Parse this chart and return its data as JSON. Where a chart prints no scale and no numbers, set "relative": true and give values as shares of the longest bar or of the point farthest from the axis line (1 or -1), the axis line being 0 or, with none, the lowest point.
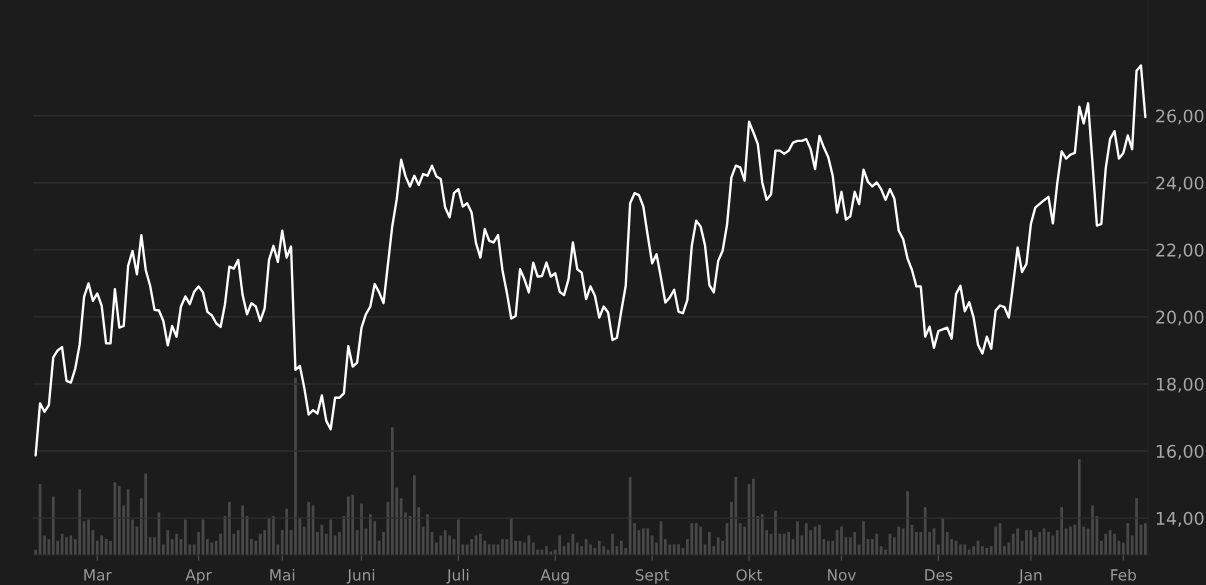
{
  "chart_data": [
    {
      "type": "line",
      "grid": "y",
      "tick_labels": "y",
      "categories": [
        null,
        null,
        null,
        null,
        null,
        null,
        null,
        null,
        null,
        null,
        null,
        null,
        null,
        null,
        null,
        null,
        null,
        null,
        null,
        null,
        null,
        null,
        null,
        null,
        null,
        null,
        null,
        null,
        null,
        null,
        null,
        null,
        null,
        null,
        null,
        null,
        null,
        null,
        null,
        null,
        null,
        null,
        null,
        null,
        null,
        null,
        null,
        null,
        null,
        null,
        null,
        null,
        null,
        null,
        null,
        null,
        null,
        null,
        null,
        null,
        null,
        null,
        null,
        null,
        null,
        null,
        null,
        null,
        null,
        null,
        null,
        null,
        null,
        null,
        null,
        null,
        null,
        null,
        null,
        null,
        null,
        null,
        null,
        null,
        null,
        null,
        null,
        null,
        null,
        null,
        null,
        null,
        null,
        null,
        null,
        null,
        null,
        null,
        null,
        null,
        null,
        null,
        null,
        null,
        null,
        null,
        null,
        null,
        null,
        null,
        null,
        null,
        null,
        null,
        null,
        null,
        null,
        null,
        null,
        null,
        null,
        null,
        null,
        null,
        null,
        null,
        null,
        null,
        null,
        null,
        null,
        null,
        null,
        null,
        null,
        null,
        null,
        null,
        null,
        null,
        null,
        null,
        null,
        null,
        null,
        null,
        null,
        null,
        null,
        null,
        null,
        null,
        null,
        null,
        null,
        null,
        null,
        null,
        null,
        null,
        null,
        null,
        null,
        null,
        null,
        null,
        null,
        null,
        null,
        null,
        null,
        null,
        null,
        null,
        null,
        null,
        null,
        null,
        null,
        null,
        null,
        null,
        null,
        null,
        null,
        null,
        null,
        null,
        null,
        null,
        null,
        null,
        null,
        null,
        null,
        null,
        null,
        null,
        null,
        null,
        null,
        null,
        null,
        null,
        null,
        null,
        null,
        null,
        null,
        null,
        null,
        null,
        null,
        null,
        null,
        null,
        null,
        null,
        null,
        null,
        null,
        null,
        null,
        null,
        null,
        null,
        null,
        null,
        null,
        null,
        null,
        null,
        null,
        null,
        null,
        null,
        null,
        null,
        null,
        null,
        null,
        null,
        null,
        null,
        null,
        null,
        null,
        null,
        null,
        null,
        null,
        null,
        null
      ],
      "ylim": [
        12.9,
        29.45
      ],
      "yticks": [
        {
          "value": 14,
          "label": "14,00"
        },
        {
          "value": 16,
          "label": "16,00"
        },
        {
          "value": 18,
          "label": "18,00"
        },
        {
          "value": 20,
          "label": "20,00"
        },
        {
          "value": 22,
          "label": "22,00"
        },
        {
          "value": 24,
          "label": "24,00"
        },
        {
          "value": 26,
          "label": "26,00"
        }
      ],
      "series": [
        {
          "color": "#ffffff",
          "values": [
            15.87,
            17.42,
            17.17,
            17.37,
            18.79,
            19.0,
            19.1,
            18.09,
            18.04,
            18.46,
            19.18,
            20.6,
            21.0,
            20.48,
            20.7,
            20.33,
            19.21,
            19.21,
            20.83,
            19.68,
            19.73,
            21.52,
            21.97,
            21.27,
            22.44,
            21.4,
            20.93,
            20.21,
            20.19,
            19.88,
            19.15,
            19.73,
            19.41,
            20.31,
            20.61,
            20.38,
            20.75,
            20.91,
            20.73,
            20.15,
            20.05,
            19.81,
            19.7,
            20.38,
            21.5,
            21.44,
            21.7,
            20.65,
            20.08,
            20.41,
            20.31,
            19.88,
            20.25,
            21.7,
            22.12,
            21.64,
            22.57,
            21.77,
            22.1,
            18.42,
            18.54,
            17.89,
            17.09,
            17.22,
            17.12,
            17.66,
            16.9,
            16.65,
            17.59,
            17.59,
            17.72,
            19.13,
            18.52,
            18.64,
            19.68,
            20.08,
            20.31,
            20.98,
            20.73,
            20.41,
            21.57,
            22.72,
            23.51,
            24.69,
            24.19,
            23.89,
            24.21,
            23.93,
            24.26,
            24.21,
            24.51,
            24.19,
            24.11,
            23.26,
            22.97,
            23.69,
            23.81,
            23.29,
            23.39,
            23.11,
            22.2,
            21.77,
            22.62,
            22.27,
            22.22,
            22.44,
            21.4,
            20.73,
            19.95,
            20.03,
            21.42,
            21.12,
            20.73,
            21.62,
            21.2,
            21.22,
            21.62,
            21.2,
            21.3,
            20.75,
            20.65,
            21.12,
            22.22,
            21.42,
            21.32,
            20.53,
            20.91,
            20.63,
            19.98,
            20.31,
            20.13,
            19.31,
            19.38,
            20.18,
            20.93,
            23.39,
            23.69,
            23.63,
            23.29,
            22.42,
            21.6,
            21.87,
            21.17,
            20.43,
            20.58,
            20.81,
            20.15,
            20.11,
            20.51,
            22.12,
            22.87,
            22.7,
            22.14,
            20.95,
            20.73,
            21.67,
            21.97,
            22.74,
            24.16,
            24.51,
            24.46,
            24.06,
            25.82,
            25.5,
            25.15,
            24.01,
            23.49,
            23.66,
            24.96,
            24.96,
            24.86,
            24.96,
            25.2,
            25.25,
            25.25,
            25.3,
            25.0,
            24.41,
            25.4,
            25.05,
            24.76,
            24.21,
            23.11,
            23.73,
            22.9,
            23.0,
            23.73,
            23.36,
            24.39,
            24.03,
            23.89,
            24.01,
            23.81,
            23.49,
            23.81,
            23.53,
            22.57,
            22.32,
            21.74,
            21.4,
            20.91,
            20.91,
            19.41,
            19.71,
            19.08,
            19.58,
            19.63,
            19.68,
            19.35,
            20.68,
            20.93,
            20.17,
            20.44,
            19.98,
            19.17,
            18.91,
            19.41,
            19.05,
            20.19,
            20.34,
            20.29,
            19.98,
            21.01,
            22.07,
            21.34,
            21.58,
            22.77,
            23.26,
            23.37,
            23.48,
            23.58,
            22.79,
            23.99,
            24.94,
            24.72,
            24.84,
            24.89,
            26.27,
            25.77,
            26.37,
            24.58,
            22.72,
            22.77,
            24.43,
            25.31,
            25.54,
            24.72,
            24.89,
            25.41,
            25.0,
            27.34,
            27.5,
            25.96
          ]
        }
      ]
    },
    {
      "type": "bar",
      "relative": true,
      "tick_labels": "x",
      "categories": [
        null,
        null,
        null,
        null,
        null,
        null,
        null,
        null,
        null,
        null,
        null,
        null,
        null,
        null,
        "Mar",
        null,
        null,
        null,
        null,
        null,
        null,
        null,
        null,
        null,
        null,
        null,
        null,
        null,
        null,
        null,
        null,
        null,
        null,
        null,
        null,
        null,
        null,
        "Apr",
        null,
        null,
        null,
        null,
        null,
        null,
        null,
        null,
        null,
        null,
        null,
        null,
        null,
        null,
        null,
        null,
        null,
        null,
        "Mai",
        null,
        null,
        null,
        null,
        null,
        null,
        null,
        null,
        null,
        null,
        null,
        null,
        null,
        null,
        null,
        null,
        null,
        "Juni",
        null,
        null,
        null,
        null,
        null,
        null,
        null,
        null,
        null,
        null,
        null,
        null,
        null,
        null,
        null,
        null,
        null,
        null,
        null,
        null,
        null,
        "Juli",
        null,
        null,
        null,
        null,
        null,
        null,
        null,
        null,
        null,
        null,
        null,
        null,
        null,
        null,
        null,
        null,
        null,
        null,
        null,
        null,
        null,
        "Aug",
        null,
        null,
        null,
        null,
        null,
        null,
        null,
        null,
        null,
        null,
        null,
        null,
        null,
        null,
        null,
        null,
        null,
        null,
        null,
        null,
        null,
        "Sept",
        null,
        null,
        null,
        null,
        null,
        null,
        null,
        null,
        null,
        null,
        null,
        null,
        null,
        null,
        null,
        null,
        null,
        null,
        null,
        null,
        null,
        "Okt",
        null,
        null,
        null,
        null,
        null,
        null,
        null,
        null,
        null,
        null,
        null,
        null,
        null,
        null,
        null,
        null,
        null,
        null,
        null,
        null,
        "Nov",
        null,
        null,
        null,
        null,
        null,
        null,
        null,
        null,
        null,
        null,
        null,
        null,
        null,
        null,
        null,
        null,
        null,
        null,
        null,
        null,
        null,
        "Des",
        null,
        null,
        null,
        null,
        null,
        null,
        null,
        null,
        null,
        null,
        null,
        null,
        null,
        null,
        null,
        null,
        null,
        null,
        null,
        null,
        "Jan",
        null,
        null,
        null,
        null,
        null,
        null,
        null,
        null,
        null,
        null,
        null,
        null,
        null,
        null,
        null,
        null,
        null,
        null,
        null,
        null,
        "Feb",
        null,
        null,
        null,
        null,
        null
      ],
      "series": [
        {
          "color": "#484848",
          "values": [
            0.03,
            0.4,
            0.11,
            0.09,
            0.33,
            0.08,
            0.12,
            0.1,
            0.11,
            0.09,
            0.37,
            0.19,
            0.2,
            0.14,
            0.08,
            0.11,
            0.09,
            0.08,
            0.41,
            0.39,
            0.28,
            0.37,
            0.2,
            0.16,
            0.32,
            0.46,
            0.1,
            0.1,
            0.24,
            0.06,
            0.14,
            0.09,
            0.12,
            0.09,
            0.2,
            0.06,
            0.06,
            0.13,
            0.2,
            0.09,
            0.07,
            0.08,
            0.12,
            0.22,
            0.3,
            0.12,
            0.14,
            0.28,
            0.22,
            0.09,
            0.08,
            0.12,
            0.14,
            0.21,
            0.22,
            0.06,
            0.14,
            0.26,
            0.14,
            1,
            0.21,
            0.16,
            0.3,
            0.28,
            0.13,
            0.17,
            0.12,
            0.2,
            0.11,
            0.13,
            0.22,
            0.33,
            0.34,
            0.14,
            0.29,
            0.15,
            0.23,
            0.19,
            0.08,
            0.13,
            0.3,
            0.72,
            0.38,
            0.32,
            0.24,
            0.22,
            0.45,
            0.27,
            0.16,
            0.23,
            0.13,
            0.07,
            0.11,
            0.14,
            0.11,
            0.09,
            0.2,
            0.06,
            0.06,
            0.09,
            0.11,
            0.12,
            0.08,
            0.06,
            0.06,
            0.06,
            0.09,
            0.09,
            0.21,
            0.08,
            0.08,
            0.07,
            0.11,
            0.07,
            0.03,
            0.03,
            0.05,
            0.02,
            0.03,
            0.11,
            0.05,
            0.07,
            0.12,
            0.07,
            0.05,
            0.09,
            0.06,
            0.04,
            0.08,
            0.05,
            0.03,
            0.12,
            0.05,
            0.08,
            0.04,
            0.44,
            0.18,
            0.14,
            0.15,
            0.15,
            0.11,
            0.07,
            0.19,
            0.09,
            0.06,
            0.06,
            0.06,
            0.04,
            0.09,
            0.18,
            0.18,
            0.16,
            0.06,
            0.13,
            0.05,
            0.1,
            0.08,
            0.18,
            0.3,
            0.44,
            0.18,
            0.16,
            0.4,
            0.43,
            0.22,
            0.23,
            0.14,
            0.12,
            0.25,
            0.12,
            0.12,
            0.13,
            0.09,
            0.19,
            0.11,
            0.18,
            0.14,
            0.16,
            0.17,
            0.09,
            0.08,
            0.08,
            0.14,
            0.16,
            0.1,
            0.1,
            0.13,
            0.06,
            0.19,
            0.09,
            0.09,
            0.12,
            0.05,
            0.03,
            0.12,
            0.1,
            0.16,
            0.15,
            0.36,
            0.17,
            0.13,
            0.13,
            0.27,
            0.13,
            0.15,
            0.06,
            0.21,
            0.13,
            0.09,
            0.08,
            0.06,
            0.06,
            0.03,
            0.05,
            0.08,
            0.05,
            0.04,
            0.05,
            0.16,
            0.18,
            0.05,
            0.07,
            0.12,
            0.15,
            0.08,
            0.14,
            0.14,
            0.1,
            0.13,
            0.15,
            0.13,
            0.11,
            0.14,
            0.27,
            0.15,
            0.16,
            0.17,
            0.54,
            0.16,
            0.15,
            0.28,
            0.22,
            0.08,
            0.12,
            0.14,
            0.12,
            0.08,
            0.07,
            0.18,
            0.11,
            0.32,
            0.17,
            0.18
          ]
        }
      ]
    }
  ]
}
